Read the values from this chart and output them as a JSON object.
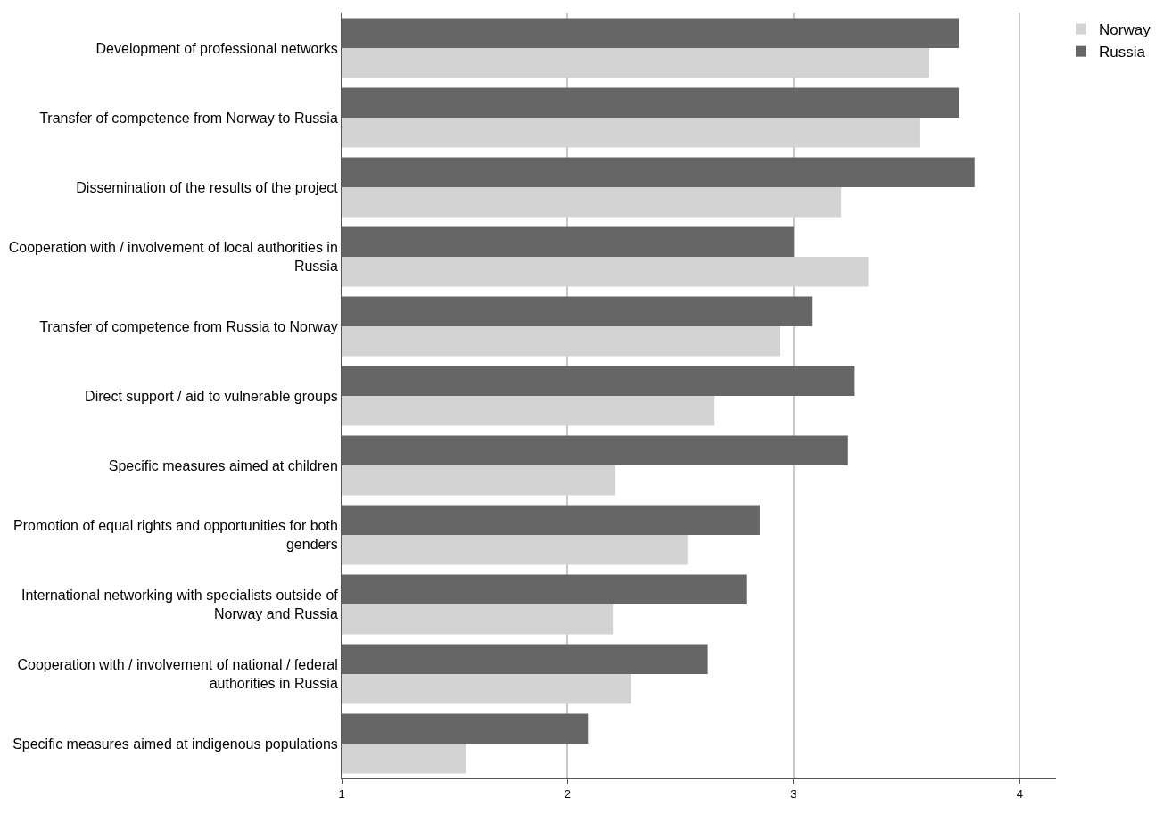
{
  "chart_data": {
    "type": "bar",
    "orientation": "horizontal",
    "categories": [
      "Development of professional networks",
      "Transfer of competence from Norway to Russia",
      "Dissemination of the results of the project",
      "Cooperation with / involvement of local authorities in Russia",
      "Transfer of competence from Russia to Norway",
      "Direct support / aid to vulnerable groups",
      "Specific measures aimed at children",
      "Promotion of equal rights and opportunities for both genders",
      "International networking with specialists outside of Norway and Russia",
      "Cooperation with / involvement of national / federal authorities in Russia",
      "Specific measures aimed at indigenous populations"
    ],
    "series": [
      {
        "name": "Norway",
        "color": "#d3d3d3",
        "values": [
          3.6,
          3.56,
          3.21,
          3.33,
          2.94,
          2.65,
          2.21,
          2.53,
          2.2,
          2.28,
          1.55
        ]
      },
      {
        "name": "Russia",
        "color": "#666666",
        "values": [
          3.73,
          3.73,
          3.8,
          3.0,
          3.08,
          3.27,
          3.24,
          2.85,
          2.79,
          2.62,
          2.09
        ]
      }
    ],
    "xlim": [
      1,
      4.16
    ],
    "xticks": [
      1,
      2,
      3,
      4
    ],
    "grid": "x",
    "legend": "top right"
  }
}
